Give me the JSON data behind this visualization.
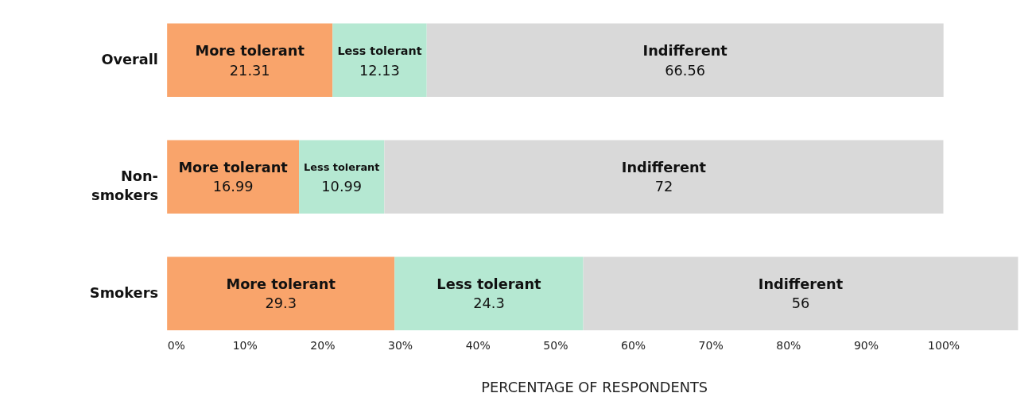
{
  "chart_data": {
    "type": "bar",
    "orientation": "horizontal",
    "stacked": true,
    "data_labels": true,
    "grid": false,
    "legend": false,
    "categories": [
      "Overall",
      "Non-smokers",
      "Smokers"
    ],
    "series": [
      {
        "name": "More tolerant",
        "color": "#f9a46b",
        "values": [
          21.31,
          16.99,
          29.3
        ]
      },
      {
        "name": "Less tolerant",
        "color": "#b5e8d2",
        "values": [
          12.13,
          10.99,
          24.3
        ]
      },
      {
        "name": "Indifferent",
        "color": "#d9d9d9",
        "values": [
          66.56,
          72,
          56
        ]
      }
    ],
    "xlim": [
      0,
      110
    ],
    "xticks": [
      {
        "value": 0,
        "label": "0%"
      },
      {
        "value": 10,
        "label": "10%"
      },
      {
        "value": 20,
        "label": "20%"
      },
      {
        "value": 30,
        "label": "30%"
      },
      {
        "value": 40,
        "label": "40%"
      },
      {
        "value": 50,
        "label": "50%"
      },
      {
        "value": 60,
        "label": "60%"
      },
      {
        "value": 70,
        "label": "70%"
      },
      {
        "value": 80,
        "label": "80%"
      },
      {
        "value": 90,
        "label": "90%"
      },
      {
        "value": 100,
        "label": "100%"
      }
    ],
    "xlabel": "PERCENTAGE OF RESPONDENTS"
  }
}
